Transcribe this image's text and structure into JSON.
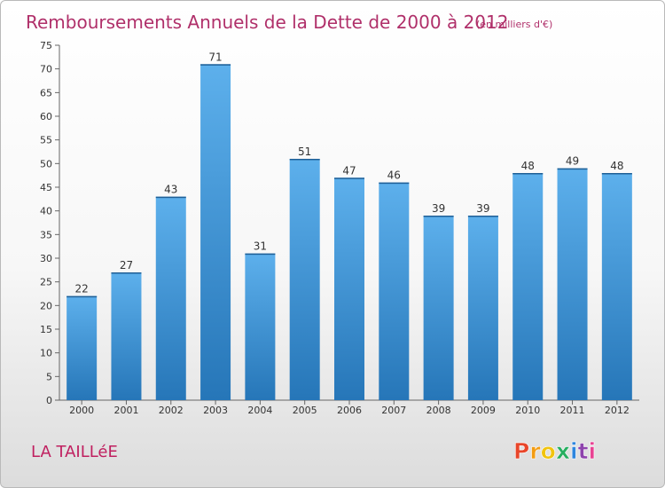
{
  "chart_data": {
    "type": "bar",
    "title": "Remboursements Annuels de la Dette de 2000 à 2012",
    "subtitle": "(en milliers d'€)",
    "categories": [
      "2000",
      "2001",
      "2002",
      "2003",
      "2004",
      "2005",
      "2006",
      "2007",
      "2008",
      "2009",
      "2010",
      "2011",
      "2012"
    ],
    "values": [
      22,
      27,
      43,
      71,
      31,
      51,
      47,
      46,
      39,
      39,
      48,
      49,
      48
    ],
    "ylim": [
      0,
      75
    ],
    "yticks": [
      0,
      5,
      10,
      15,
      20,
      25,
      30,
      35,
      40,
      45,
      50,
      55,
      60,
      65,
      70,
      75
    ],
    "grid": false,
    "bar_color": "#3d8fd6"
  },
  "footer": {
    "place_name": "LA TAILLéE",
    "logo_text": "Proxiti",
    "logo_colors": [
      "#e8462a",
      "#f39c12",
      "#f1c40f",
      "#27ae60",
      "#2e86de",
      "#8e44ad",
      "#e84393"
    ]
  }
}
